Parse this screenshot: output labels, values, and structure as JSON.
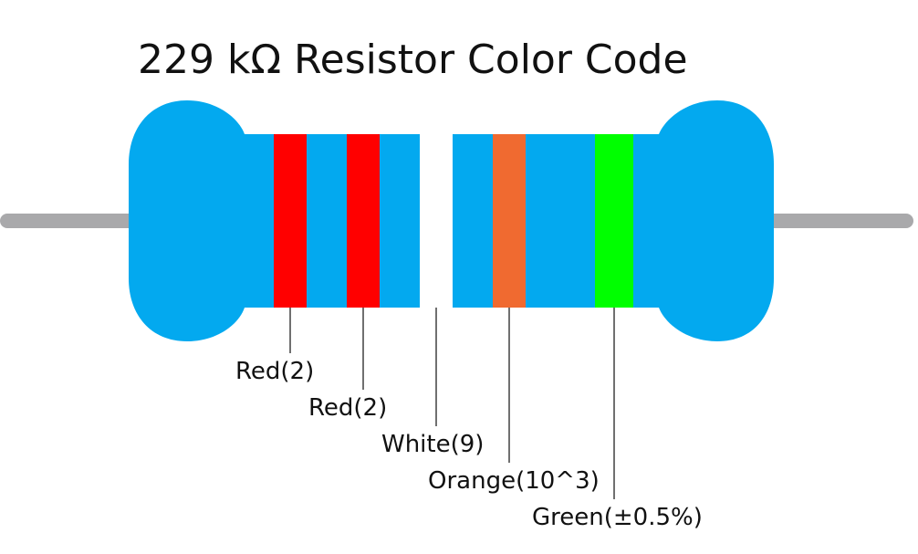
{
  "title": "229 kΩ Resistor Color Code",
  "colors": {
    "body": "#03a9ef",
    "lead": "#a9a9ab",
    "leader_line": "#111111",
    "text": "#111111"
  },
  "bands": [
    {
      "name": "band-1",
      "label": "Red(2)",
      "color": "#ff0000"
    },
    {
      "name": "band-2",
      "label": "Red(2)",
      "color": "#ff0000"
    },
    {
      "name": "band-3",
      "label": "White(9)",
      "color": "#ffffff"
    },
    {
      "name": "band-4",
      "label": "Orange(10^3)",
      "color": "#f06a30"
    },
    {
      "name": "band-5",
      "label": "Green(±0.5%)",
      "color": "#00ff00"
    }
  ]
}
